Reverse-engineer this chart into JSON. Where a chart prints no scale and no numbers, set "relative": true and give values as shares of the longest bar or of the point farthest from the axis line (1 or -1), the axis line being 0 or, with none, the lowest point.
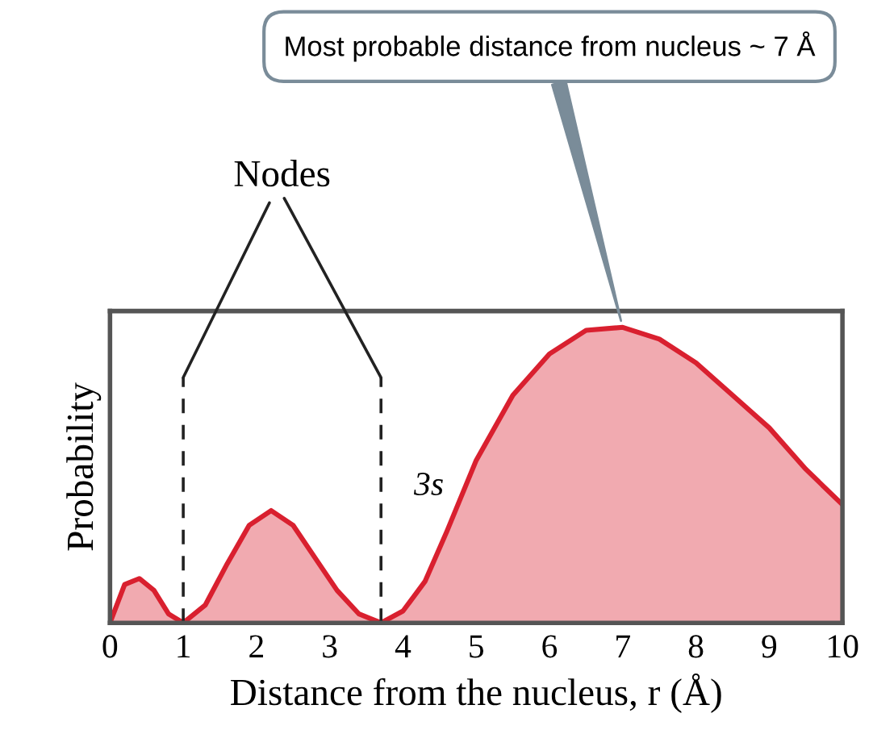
{
  "chart_data": {
    "type": "area",
    "relative": true,
    "xlabel": "Distance from the nucleus, r (Å)",
    "ylabel": "Probability",
    "xlim": [
      0,
      10
    ],
    "xticks": [
      0,
      1,
      2,
      3,
      4,
      5,
      6,
      7,
      8,
      9,
      10
    ],
    "tick_labels": "x",
    "grid": false,
    "legend": false,
    "x": [
      0,
      0.2,
      0.4,
      0.6,
      0.8,
      1.0,
      1.3,
      1.6,
      1.9,
      2.2,
      2.5,
      2.8,
      3.1,
      3.4,
      3.7,
      4.0,
      4.3,
      4.6,
      5.0,
      5.5,
      6.0,
      6.5,
      7.0,
      7.5,
      8.0,
      8.5,
      9.0,
      9.5,
      10
    ],
    "series": [
      {
        "name": "3s",
        "color": "#d9202f",
        "values": [
          0,
          0.13,
          0.15,
          0.11,
          0.03,
          0,
          0.06,
          0.2,
          0.33,
          0.38,
          0.33,
          0.22,
          0.11,
          0.03,
          0,
          0.04,
          0.14,
          0.31,
          0.55,
          0.77,
          0.91,
          0.99,
          1,
          0.96,
          0.88,
          0.77,
          0.66,
          0.52,
          0.4
        ]
      }
    ],
    "ref_lines": [
      {
        "axis": "x",
        "value": 1,
        "line_style": "dashed",
        "color": "#222222"
      },
      {
        "axis": "x",
        "value": 3.7,
        "line_style": "dashed",
        "color": "#222222"
      }
    ],
    "annotations": [
      "Nodes",
      {
        "text": "Most probable distance from nucleus ~ 7 Å",
        "x": 7,
        "y": 1
      }
    ]
  }
}
